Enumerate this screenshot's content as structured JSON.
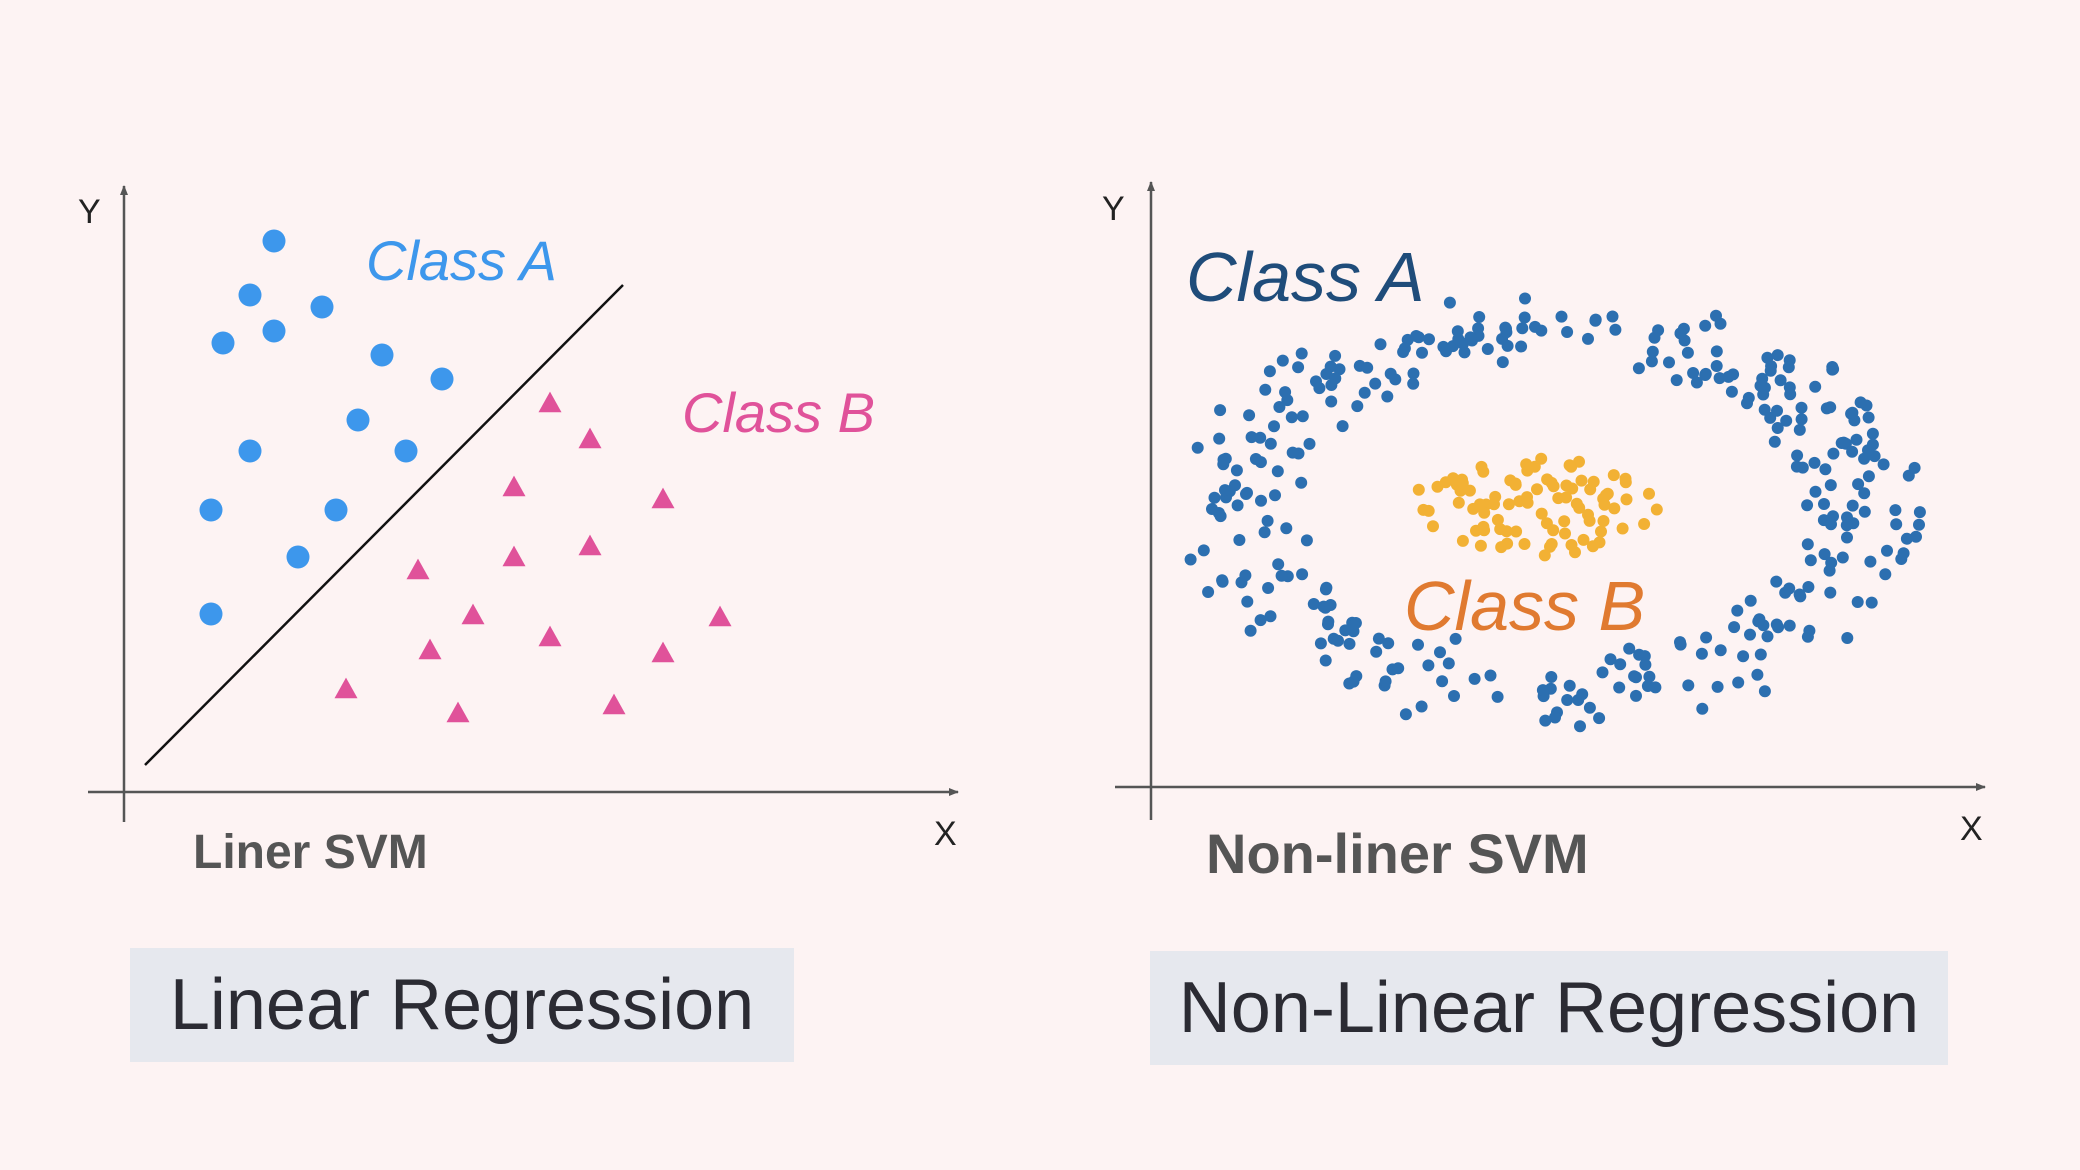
{
  "left_panel": {
    "y_axis_label": "Y",
    "x_axis_label": "X",
    "class_a_label": "Class A",
    "class_b_label": "Class B",
    "subtitle": "Liner SVM",
    "caption": "Linear Regression"
  },
  "right_panel": {
    "y_axis_label": "Y",
    "x_axis_label": "X",
    "class_a_label": "Class A",
    "class_b_label": "Class B",
    "subtitle": "Non-liner SVM",
    "caption": "Non-Linear Regression"
  },
  "colors": {
    "background": "#fdf3f3",
    "axis": "#555555",
    "left_class_a": "#3d97ec",
    "left_class_b": "#e0529a",
    "right_class_a": "#2c6fb0",
    "right_class_a_label": "#1f4c7a",
    "right_class_b": "#f2b134",
    "right_class_b_label": "#e07a30",
    "subtitle": "#555555",
    "caption_bg": "#e6e8ee"
  }
}
